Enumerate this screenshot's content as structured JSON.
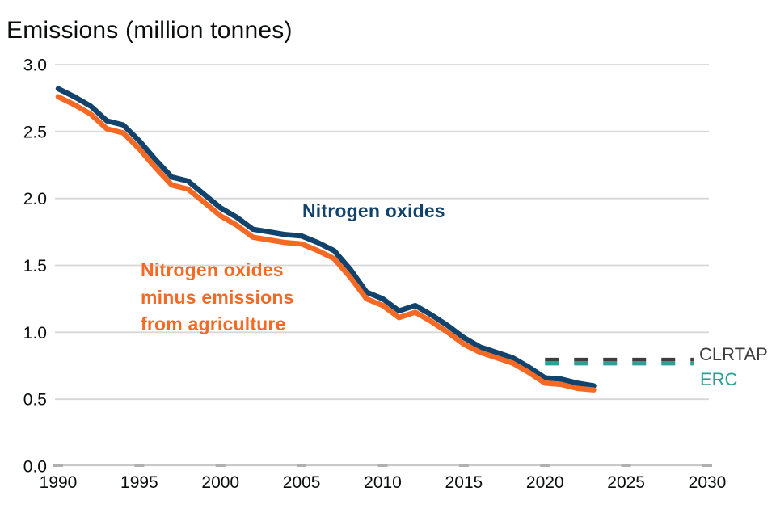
{
  "chart_data": {
    "type": "line",
    "title": "Emissions (million tonnes)",
    "xlabel": "",
    "ylabel": "Emissions (million tonnes)",
    "xlim": [
      1990,
      2030
    ],
    "ylim": [
      0.0,
      3.0
    ],
    "grid": "horizontal",
    "legend_position": "none (direct labels on chart)",
    "x_ticks": [
      1990,
      1995,
      2000,
      2005,
      2010,
      2015,
      2020,
      2025,
      2030
    ],
    "y_ticks": [
      0.0,
      0.5,
      1.0,
      1.5,
      2.0,
      2.5,
      3.0
    ],
    "y_tick_labels": [
      "0.0",
      "0.5",
      "1.0",
      "1.5",
      "2.0",
      "2.5",
      "3.0"
    ],
    "x": [
      1990,
      1991,
      1992,
      1993,
      1994,
      1995,
      1996,
      1997,
      1998,
      1999,
      2000,
      2001,
      2002,
      2003,
      2004,
      2005,
      2006,
      2007,
      2008,
      2009,
      2010,
      2011,
      2012,
      2013,
      2014,
      2015,
      2016,
      2017,
      2018,
      2019,
      2020,
      2021,
      2022,
      2023
    ],
    "series": [
      {
        "name": "Nitrogen oxides",
        "color": "#12436D",
        "values": [
          2.82,
          2.76,
          2.69,
          2.58,
          2.55,
          2.43,
          2.29,
          2.16,
          2.13,
          2.03,
          1.93,
          1.86,
          1.77,
          1.75,
          1.73,
          1.72,
          1.67,
          1.61,
          1.47,
          1.3,
          1.25,
          1.16,
          1.2,
          1.13,
          1.05,
          0.96,
          0.89,
          0.85,
          0.81,
          0.74,
          0.66,
          0.65,
          0.62,
          0.6
        ]
      },
      {
        "name": "Nitrogen oxides minus emissions from agriculture",
        "color": "#F46A25",
        "values": [
          2.76,
          2.7,
          2.63,
          2.52,
          2.49,
          2.37,
          2.23,
          2.1,
          2.07,
          1.97,
          1.87,
          1.8,
          1.71,
          1.69,
          1.67,
          1.66,
          1.61,
          1.55,
          1.41,
          1.25,
          1.2,
          1.11,
          1.15,
          1.08,
          1.0,
          0.91,
          0.85,
          0.81,
          0.77,
          0.7,
          0.62,
          0.61,
          0.58,
          0.57
        ]
      }
    ],
    "reference_lines": [
      {
        "name": "CLRTAP",
        "color": "#3D3D3D",
        "value": 0.78,
        "span": [
          2020,
          2029
        ],
        "style": "dashed"
      },
      {
        "name": "ERC",
        "color": "#28A197",
        "value": 0.78,
        "span": [
          2020,
          2029
        ],
        "style": "dashed"
      }
    ]
  },
  "labels": {
    "series1": "Nitrogen oxides",
    "series2_line1": "Nitrogen oxides",
    "series2_line2": "minus emissions",
    "series2_line3": "from agriculture",
    "clrtap": "CLRTAP",
    "erc": "ERC"
  }
}
